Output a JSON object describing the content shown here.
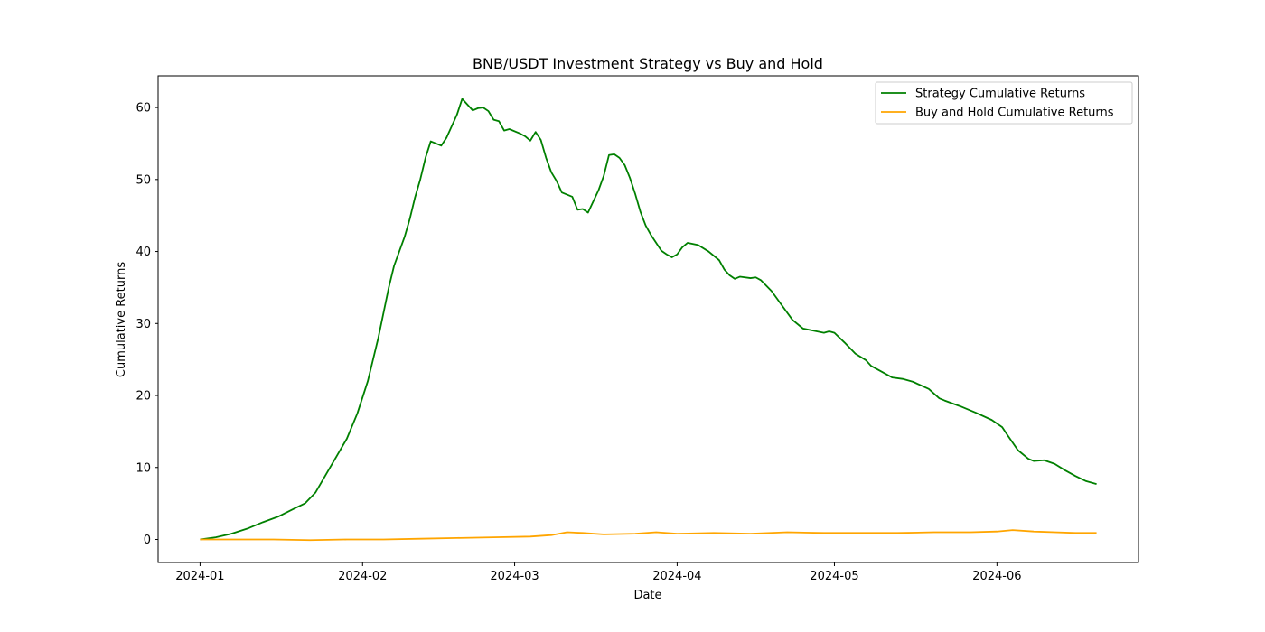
{
  "chart_data": {
    "type": "line",
    "title": "BNB/USDT Investment Strategy vs Buy and Hold",
    "xlabel": "Date",
    "ylabel": "Cumulative Returns",
    "x_type": "date",
    "xlim": [
      "2023-12-24",
      "2024-06-28"
    ],
    "ylim": [
      -3.2,
      64.4
    ],
    "x_ticks": [
      "2024-01-01",
      "2024-02-01",
      "2024-03-01",
      "2024-04-01",
      "2024-05-01",
      "2024-06-01"
    ],
    "x_tick_labels": [
      "2024-01",
      "2024-02",
      "2024-03",
      "2024-04",
      "2024-05",
      "2024-06"
    ],
    "y_ticks": [
      0,
      10,
      20,
      30,
      40,
      50,
      60
    ],
    "y_tick_labels": [
      "0",
      "10",
      "20",
      "30",
      "40",
      "50",
      "60"
    ],
    "grid": false,
    "legend_position": "top-right",
    "series": [
      {
        "name": "Strategy Cumulative Returns",
        "color": "#008000",
        "points": [
          [
            "2024-01-01",
            0.0
          ],
          [
            "2024-01-04",
            0.3
          ],
          [
            "2024-01-07",
            0.8
          ],
          [
            "2024-01-10",
            1.5
          ],
          [
            "2024-01-13",
            2.4
          ],
          [
            "2024-01-16",
            3.2
          ],
          [
            "2024-01-19",
            4.3
          ],
          [
            "2024-01-21",
            5.0
          ],
          [
            "2024-01-23",
            6.5
          ],
          [
            "2024-01-25",
            9.0
          ],
          [
            "2024-01-27",
            11.5
          ],
          [
            "2024-01-29",
            14.0
          ],
          [
            "2024-01-31",
            17.5
          ],
          [
            "2024-02-02",
            22.0
          ],
          [
            "2024-02-04",
            28.0
          ],
          [
            "2024-02-06",
            35.0
          ],
          [
            "2024-02-07",
            38.0
          ],
          [
            "2024-02-09",
            42.0
          ],
          [
            "2024-02-10",
            44.5
          ],
          [
            "2024-02-11",
            47.5
          ],
          [
            "2024-02-12",
            50.0
          ],
          [
            "2024-02-13",
            53.0
          ],
          [
            "2024-02-14",
            55.3
          ],
          [
            "2024-02-16",
            54.7
          ],
          [
            "2024-02-17",
            55.8
          ],
          [
            "2024-02-19",
            59.0
          ],
          [
            "2024-02-20",
            61.2
          ],
          [
            "2024-02-22",
            59.6
          ],
          [
            "2024-02-23",
            59.9
          ],
          [
            "2024-02-24",
            60.0
          ],
          [
            "2024-02-25",
            59.5
          ],
          [
            "2024-02-26",
            58.3
          ],
          [
            "2024-02-27",
            58.1
          ],
          [
            "2024-02-28",
            56.8
          ],
          [
            "2024-02-29",
            57.0
          ],
          [
            "2024-03-02",
            56.4
          ],
          [
            "2024-03-03",
            56.0
          ],
          [
            "2024-03-04",
            55.4
          ],
          [
            "2024-03-05",
            56.6
          ],
          [
            "2024-03-06",
            55.5
          ],
          [
            "2024-03-07",
            53.0
          ],
          [
            "2024-03-08",
            51.0
          ],
          [
            "2024-03-09",
            49.8
          ],
          [
            "2024-03-10",
            48.2
          ],
          [
            "2024-03-12",
            47.6
          ],
          [
            "2024-03-13",
            45.8
          ],
          [
            "2024-03-14",
            45.9
          ],
          [
            "2024-03-15",
            45.4
          ],
          [
            "2024-03-17",
            48.5
          ],
          [
            "2024-03-18",
            50.5
          ],
          [
            "2024-03-19",
            53.4
          ],
          [
            "2024-03-20",
            53.5
          ],
          [
            "2024-03-21",
            53.0
          ],
          [
            "2024-03-22",
            52.0
          ],
          [
            "2024-03-23",
            50.2
          ],
          [
            "2024-03-24",
            48.0
          ],
          [
            "2024-03-25",
            45.5
          ],
          [
            "2024-03-26",
            43.6
          ],
          [
            "2024-03-27",
            42.3
          ],
          [
            "2024-03-28",
            41.2
          ],
          [
            "2024-03-29",
            40.1
          ],
          [
            "2024-03-30",
            39.6
          ],
          [
            "2024-03-31",
            39.2
          ],
          [
            "2024-04-01",
            39.6
          ],
          [
            "2024-04-02",
            40.6
          ],
          [
            "2024-04-03",
            41.2
          ],
          [
            "2024-04-05",
            40.9
          ],
          [
            "2024-04-07",
            40.0
          ],
          [
            "2024-04-09",
            38.8
          ],
          [
            "2024-04-10",
            37.5
          ],
          [
            "2024-04-11",
            36.7
          ],
          [
            "2024-04-12",
            36.2
          ],
          [
            "2024-04-13",
            36.5
          ],
          [
            "2024-04-15",
            36.3
          ],
          [
            "2024-04-16",
            36.4
          ],
          [
            "2024-04-17",
            36.0
          ],
          [
            "2024-04-19",
            34.5
          ],
          [
            "2024-04-21",
            32.5
          ],
          [
            "2024-04-23",
            30.5
          ],
          [
            "2024-04-25",
            29.3
          ],
          [
            "2024-04-27",
            29.0
          ],
          [
            "2024-04-29",
            28.7
          ],
          [
            "2024-04-30",
            28.9
          ],
          [
            "2024-05-01",
            28.7
          ],
          [
            "2024-05-03",
            27.3
          ],
          [
            "2024-05-05",
            25.8
          ],
          [
            "2024-05-07",
            24.9
          ],
          [
            "2024-05-08",
            24.1
          ],
          [
            "2024-05-10",
            23.3
          ],
          [
            "2024-05-12",
            22.5
          ],
          [
            "2024-05-14",
            22.3
          ],
          [
            "2024-05-16",
            21.9
          ],
          [
            "2024-05-19",
            20.9
          ],
          [
            "2024-05-21",
            19.6
          ],
          [
            "2024-05-22",
            19.3
          ],
          [
            "2024-05-25",
            18.5
          ],
          [
            "2024-05-28",
            17.6
          ],
          [
            "2024-05-31",
            16.6
          ],
          [
            "2024-06-02",
            15.6
          ],
          [
            "2024-06-03",
            14.5
          ],
          [
            "2024-06-05",
            12.4
          ],
          [
            "2024-06-07",
            11.2
          ],
          [
            "2024-06-08",
            10.9
          ],
          [
            "2024-06-10",
            11.0
          ],
          [
            "2024-06-12",
            10.5
          ],
          [
            "2024-06-14",
            9.6
          ],
          [
            "2024-06-16",
            8.8
          ],
          [
            "2024-06-18",
            8.1
          ],
          [
            "2024-06-20",
            7.7
          ]
        ]
      },
      {
        "name": "Buy and Hold Cumulative Returns",
        "color": "#ffa500",
        "points": [
          [
            "2024-01-01",
            0.0
          ],
          [
            "2024-01-08",
            0.0
          ],
          [
            "2024-01-15",
            0.0
          ],
          [
            "2024-01-22",
            -0.1
          ],
          [
            "2024-01-29",
            0.0
          ],
          [
            "2024-02-05",
            0.0
          ],
          [
            "2024-02-12",
            0.1
          ],
          [
            "2024-02-19",
            0.2
          ],
          [
            "2024-02-26",
            0.3
          ],
          [
            "2024-03-04",
            0.4
          ],
          [
            "2024-03-08",
            0.6
          ],
          [
            "2024-03-11",
            1.0
          ],
          [
            "2024-03-14",
            0.9
          ],
          [
            "2024-03-18",
            0.7
          ],
          [
            "2024-03-24",
            0.8
          ],
          [
            "2024-03-28",
            1.0
          ],
          [
            "2024-04-01",
            0.8
          ],
          [
            "2024-04-08",
            0.9
          ],
          [
            "2024-04-15",
            0.8
          ],
          [
            "2024-04-22",
            1.0
          ],
          [
            "2024-04-29",
            0.9
          ],
          [
            "2024-05-06",
            0.9
          ],
          [
            "2024-05-13",
            0.9
          ],
          [
            "2024-05-20",
            1.0
          ],
          [
            "2024-05-27",
            1.0
          ],
          [
            "2024-06-01",
            1.1
          ],
          [
            "2024-06-04",
            1.3
          ],
          [
            "2024-06-08",
            1.1
          ],
          [
            "2024-06-12",
            1.0
          ],
          [
            "2024-06-16",
            0.9
          ],
          [
            "2024-06-20",
            0.9
          ]
        ]
      }
    ]
  }
}
